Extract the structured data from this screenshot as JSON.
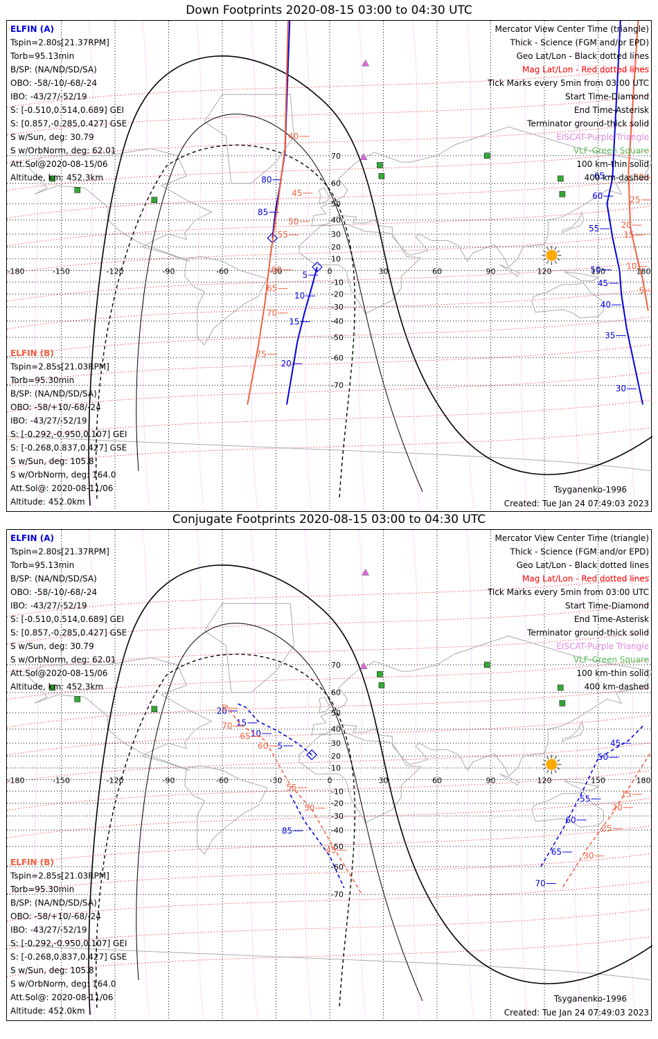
{
  "panels": [
    {
      "title": "Down Footprints 2020-08-15 03:00 to 04:30 UTC",
      "elfin_a": [
        "ELFIN (A)",
        "Tspin=2.80s[21.37RPM]",
        "Torb=95.13min",
        "B/SP: (NA/ND/SD/SA)",
        "OBO: -58/-10/-68/-24",
        "IBO: -43/27/-52/19",
        "S: [-0.510,0.514,0.689] GEI",
        "S: [0.857,-0.285,0.427] GSE",
        "S w/Sun, deg: 30.79",
        "S w/OrbNorm, deg: 62.01",
        "Att.Sol@2020-08-15/06",
        "Altitude, km: 452.3km"
      ],
      "elfin_b": [
        "ELFIN (B)",
        "Tspin=2.85s[21.03RPM]",
        "Torb=95.30min",
        "B/SP: (NA/ND/SD/SA)",
        "OBO: -58/+10/-68/-24",
        "IBO: -43/27/-52/19",
        "S: [-0.292,-0.950,0.107] GEI",
        "S: [-0.268,0.837,0.427] GSE",
        "S w/Sun, deg: 105.8",
        "S w/OrbNorm, deg: 164.0",
        "Att.Sol@: 2020-08-11/06",
        "Altitude: 452.0km"
      ],
      "legend": [
        "Mercator View Center Time (triangle)",
        "Thick - Science (FGM and/or EPD)",
        "Geo Lat/Lon - Black dotted lines",
        "Mag Lat/Lon - Red dotted lines",
        "Tick Marks every 5min from 03:00 UTC",
        "Start Time-Diamond",
        "End Time-Asterisk",
        "Terminator ground-thick solid",
        "EISCAT-Purple Triangle",
        "VLF-Green Square",
        "100 km-thin solid",
        "400 km-dashed"
      ],
      "model": "Tsyganenko-1996",
      "created": "Created: Tue Jan 24 07:49:03 2023"
    },
    {
      "title": "Conjugate Footprints 2020-08-15 03:00 to 04:30 UTC",
      "elfin_a": [
        "ELFIN (A)",
        "Tspin=2.80s[21.37RPM]",
        "Torb=95.13min",
        "B/SP: (NA/ND/SD/SA)",
        "OBO: -58/-10/-68/-24",
        "IBO: -43/27/-52/19",
        "S: [-0.510,0.514,0.689] GEI",
        "S: [0.857,-0.285,0.427] GSE",
        "S w/Sun, deg: 30.79",
        "S w/OrbNorm, deg: 62.01",
        "Att.Sol@2020-08-15/06",
        "Altitude, km: 452.3km"
      ],
      "elfin_b": [
        "ELFIN (B)",
        "Tspin=2.85s[21.03RPM]",
        "Torb=95.30min",
        "B/SP: (NA/ND/SD/SA)",
        "OBO: -58/+10/-68/-24",
        "IBO: -43/27/-52/19",
        "S: [-0.292,-0.950,0.107] GEI",
        "S: [-0.268,0.837,0.427] GSE",
        "S w/Sun, deg: 105.8",
        "S w/OrbNorm, deg: 164.0",
        "Att.Sol@: 2020-08-11/06",
        "Altitude: 452.0km"
      ],
      "legend": [
        "Mercator View Center Time (triangle)",
        "Thick - Science (FGM and/or EPD)",
        "Geo Lat/Lon - Black dotted lines",
        "Mag Lat/Lon - Red dotted lines",
        "Tick Marks every 5min from 03:00 UTC",
        "Start Time-Diamond",
        "End Time-Asterisk",
        "Terminator ground-thick solid",
        "EISCAT-Purple Triangle",
        "VLF-Green Square",
        "100 km-thin solid",
        "400 km-dashed"
      ],
      "model": "Tsyganenko-1996",
      "created": "Created: Tue Jan 24 07:49:03 2023"
    }
  ],
  "colors": {
    "elfin_a": "#0000dd",
    "elfin_b": "#f06040",
    "mag_grid": "#ff0000",
    "geo_grid": "#000000",
    "eiscat": "#dd66dd",
    "vlf": "#33aa33",
    "vlf_text": "#55bb55",
    "eiscat_text": "#dd88dd",
    "sun": "#ffaa00",
    "terminator": "#000000"
  },
  "chart_data": [
    {
      "type": "map",
      "projection": "mercator",
      "title": "Down Footprints 2020-08-15 03:00 to 04:30 UTC",
      "lon_ticks": [
        -180,
        -150,
        -120,
        -90,
        -60,
        -30,
        0,
        30,
        60,
        90,
        120,
        150,
        180
      ],
      "lon_tick_labels": [
        "-180",
        "-150",
        "-120",
        "-90",
        "-60",
        "-30",
        "0",
        "30",
        "60",
        "90",
        "120",
        "150",
        "180"
      ],
      "lat_ticks": [
        70,
        60,
        50,
        40,
        30,
        20,
        10,
        -10,
        -20,
        -30,
        -40,
        -50,
        -60,
        -70
      ],
      "lat_tick_labels": [
        "70",
        "60",
        "50",
        "40",
        "30",
        "20",
        "10",
        "-10",
        "-20",
        "-30",
        "-40",
        "-50",
        "-60",
        "-70"
      ],
      "xlim": [
        -180,
        180
      ],
      "ylim": [
        -78,
        78
      ],
      "eiscat": [
        {
          "lon": 19,
          "lat": 69.6
        },
        {
          "lon": 20,
          "lat": 85
        }
      ],
      "vlf": [
        {
          "lon": -155,
          "lat": 62
        },
        {
          "lon": -141,
          "lat": 57
        },
        {
          "lon": -98,
          "lat": 52
        },
        {
          "lon": 28,
          "lat": 67
        },
        {
          "lon": 29,
          "lat": 63
        },
        {
          "lon": 88,
          "lat": 70
        },
        {
          "lon": 129,
          "lat": 62
        },
        {
          "lon": 130,
          "lat": 55
        }
      ],
      "sun": {
        "lon": 124,
        "lat": 13
      },
      "series": [
        {
          "name": "ELFIN (A)",
          "points": [
            [
              -32,
              27
            ],
            [
              -30,
              48
            ],
            [
              -28,
              58
            ],
            [
              -25,
              71
            ],
            [
              -22,
              88
            ]
          ],
          "tick_labels": [
            {
              "label": "80",
              "lon": -30,
              "lat": 61.5
            },
            {
              "label": "85",
              "lon": -32,
              "lat": 45
            }
          ],
          "start": [
            -32,
            27
          ]
        },
        {
          "name": "ELFIN (A)",
          "points": [
            [
              -7,
              3
            ],
            [
              -10,
              -14
            ],
            [
              -14,
              -34
            ],
            [
              -18,
              -52
            ],
            [
              -24,
              -75
            ]
          ],
          "tick_labels": [
            {
              "label": "5",
              "lon": -10,
              "lat": -4
            },
            {
              "label": "10",
              "lon": -11.5,
              "lat": -21.5
            },
            {
              "label": "15",
              "lon": -14.5,
              "lat": -40.5
            },
            {
              "label": "20",
              "lon": -19,
              "lat": -62.5
            }
          ],
          "start": [
            -7,
            3
          ]
        },
        {
          "name": "ELFIN (A)",
          "points": [
            [
              163,
              88
            ],
            [
              158,
              62
            ],
            [
              155,
              50
            ],
            [
              158,
              28
            ],
            [
              162,
              0
            ],
            [
              163,
              -20
            ],
            [
              166,
              -45
            ],
            [
              175,
              -75
            ]
          ],
          "tick_labels": [
            {
              "label": "65",
              "lon": 156,
              "lat": 63
            },
            {
              "label": "60",
              "lon": 155,
              "lat": 54
            },
            {
              "label": "55",
              "lon": 153,
              "lat": 34
            },
            {
              "label": "50",
              "lon": 154,
              "lat": 0.5
            },
            {
              "label": "45",
              "lon": 158,
              "lat": -11
            },
            {
              "label": "40",
              "lon": 159.5,
              "lat": -28.5
            },
            {
              "label": "35",
              "lon": 162,
              "lat": -49
            },
            {
              "label": "30",
              "lon": 168,
              "lat": -71
            }
          ]
        },
        {
          "name": "ELFIN (B)",
          "points": [
            [
              -23,
              88
            ],
            [
              -25,
              72
            ],
            [
              -29,
              50
            ],
            [
              -33,
              14
            ],
            [
              -36,
              -25
            ],
            [
              -40,
              -55
            ],
            [
              -46,
              -75
            ]
          ],
          "tick_labels": [
            {
              "label": "40",
              "lon": -15,
              "lat": 75
            },
            {
              "label": "45",
              "lon": -13,
              "lat": 55.5
            },
            {
              "label": "50",
              "lon": -15,
              "lat": 39
            },
            {
              "label": "55",
              "lon": -21,
              "lat": 29.5
            },
            {
              "label": "60",
              "lon": -24.5,
              "lat": 0.5
            },
            {
              "label": "65",
              "lon": -27,
              "lat": -15.5
            },
            {
              "label": "70",
              "lon": -27,
              "lat": -34.5
            },
            {
              "label": "75",
              "lon": -33,
              "lat": -58.5
            }
          ]
        },
        {
          "name": "ELFIN (B)",
          "points": [
            [
              173,
              88
            ],
            [
              167,
              65
            ],
            [
              168,
              35
            ],
            [
              172,
              10
            ],
            [
              175,
              -8
            ],
            [
              178,
              -33
            ]
          ],
          "tick_labels": [
            {
              "label": "30",
              "lon": 178,
              "lat": 62.5
            },
            {
              "label": "25",
              "lon": 176,
              "lat": 52
            },
            {
              "label": "20",
              "lon": 171,
              "lat": 36.5
            },
            {
              "label": "15",
              "lon": 172.5,
              "lat": 29.5
            },
            {
              "label": "10",
              "lon": 174,
              "lat": 3.5
            },
            {
              "label": "5",
              "lon": 178,
              "lat": -17.5
            }
          ]
        }
      ]
    },
    {
      "type": "map",
      "projection": "mercator",
      "title": "Conjugate Footprints 2020-08-15 03:00 to 04:30 UTC",
      "lon_ticks": [
        -180,
        -150,
        -120,
        -90,
        -60,
        -30,
        0,
        30,
        60,
        90,
        120,
        150,
        180
      ],
      "lon_tick_labels": [
        "-180",
        "-150",
        "-120",
        "-90",
        "-60",
        "-30",
        "0",
        "30",
        "60",
        "90",
        "120",
        "150",
        "180"
      ],
      "lat_ticks": [
        70,
        60,
        50,
        40,
        30,
        20,
        10,
        -10,
        -20,
        -30,
        -40,
        -50,
        -60,
        -70
      ],
      "lat_tick_labels": [
        "70",
        "60",
        "50",
        "40",
        "30",
        "20",
        "10",
        "-10",
        "-20",
        "-30",
        "-40",
        "-50",
        "-60",
        "-70"
      ],
      "xlim": [
        -180,
        180
      ],
      "ylim": [
        -78,
        78
      ],
      "eiscat": [
        {
          "lon": 19,
          "lat": 69.6
        },
        {
          "lon": 20,
          "lat": 85
        }
      ],
      "vlf": [
        {
          "lon": -155,
          "lat": 62
        },
        {
          "lon": -141,
          "lat": 57
        },
        {
          "lon": -98,
          "lat": 52
        },
        {
          "lon": 28,
          "lat": 67
        },
        {
          "lon": 29,
          "lat": 63
        },
        {
          "lon": 88,
          "lat": 70
        },
        {
          "lon": 129,
          "lat": 62
        },
        {
          "lon": 130,
          "lat": 55
        }
      ],
      "sun": {
        "lon": 124,
        "lat": 13
      },
      "series": [
        {
          "name": "ELFIN (A)",
          "points": [
            [
              -10,
              21
            ],
            [
              -18,
              30
            ],
            [
              -28,
              38
            ],
            [
              -40,
              45
            ],
            [
              -47,
              53
            ],
            [
              -52,
              55
            ]
          ],
          "tick_labels": [
            {
              "label": "5",
              "lon": -24,
              "lat": 28
            },
            {
              "label": "10",
              "lon": -36,
              "lat": 37
            },
            {
              "label": "15",
              "lon": -44,
              "lat": 44
            },
            {
              "label": "20",
              "lon": -55,
              "lat": 51
            }
          ],
          "start": [
            -10,
            21
          ]
        },
        {
          "name": "ELFIN (A)",
          "points": [
            [
              -22,
              -13
            ],
            [
              -14,
              -34
            ],
            [
              0,
              -55
            ],
            [
              8,
              -68
            ]
          ],
          "tick_labels": [
            {
              "label": "85",
              "lon": -18.5,
              "lat": -40.5
            }
          ]
        },
        {
          "name": "ELFIN (A)",
          "points": [
            [
              175,
              42
            ],
            [
              167,
              32
            ],
            [
              150,
              18
            ],
            [
              140,
              -14
            ],
            [
              130,
              -40
            ],
            [
              118,
              -60
            ]
          ],
          "tick_labels": [
            {
              "label": "45",
              "lon": 165,
              "lat": 30
            },
            {
              "label": "50",
              "lon": 158,
              "lat": 19
            },
            {
              "label": "55",
              "lon": 148,
              "lat": -16.5
            },
            {
              "label": "60",
              "lon": 140,
              "lat": -33
            },
            {
              "label": "65",
              "lon": 132,
              "lat": -53
            },
            {
              "label": "70",
              "lon": 123,
              "lat": -66.5
            }
          ]
        },
        {
          "name": "ELFIN (B)",
          "points": [
            [
              -58,
              54
            ],
            [
              -50,
              43
            ],
            [
              -36,
              32
            ],
            [
              -22,
              -5
            ],
            [
              -10,
              -25
            ],
            [
              3,
              -52
            ],
            [
              18,
              -70
            ]
          ],
          "tick_labels": [
            {
              "label": "5",
              "lon": -55,
              "lat": 52.5
            },
            {
              "label": "70",
              "lon": -52,
              "lat": 42
            },
            {
              "label": "65",
              "lon": -42,
              "lat": 35
            },
            {
              "label": "60",
              "lon": -32,
              "lat": 28
            },
            {
              "label": "55",
              "lon": -16,
              "lat": -7
            },
            {
              "label": "50",
              "lon": -6,
              "lat": -24
            },
            {
              "label": "45",
              "lon": 6,
              "lat": -52
            }
          ]
        },
        {
          "name": "ELFIN (B)",
          "points": [
            [
              179,
              22
            ],
            [
              168,
              -5
            ],
            [
              158,
              -28
            ],
            [
              144,
              -51
            ],
            [
              130,
              -68
            ]
          ],
          "tick_labels": [
            {
              "label": "15",
              "lon": 171,
              "lat": -12.5
            },
            {
              "label": "20",
              "lon": 166,
              "lat": -23.5
            },
            {
              "label": "25",
              "lon": 160,
              "lat": -39
            },
            {
              "label": "30",
              "lon": 150,
              "lat": -55
            }
          ]
        }
      ]
    }
  ]
}
